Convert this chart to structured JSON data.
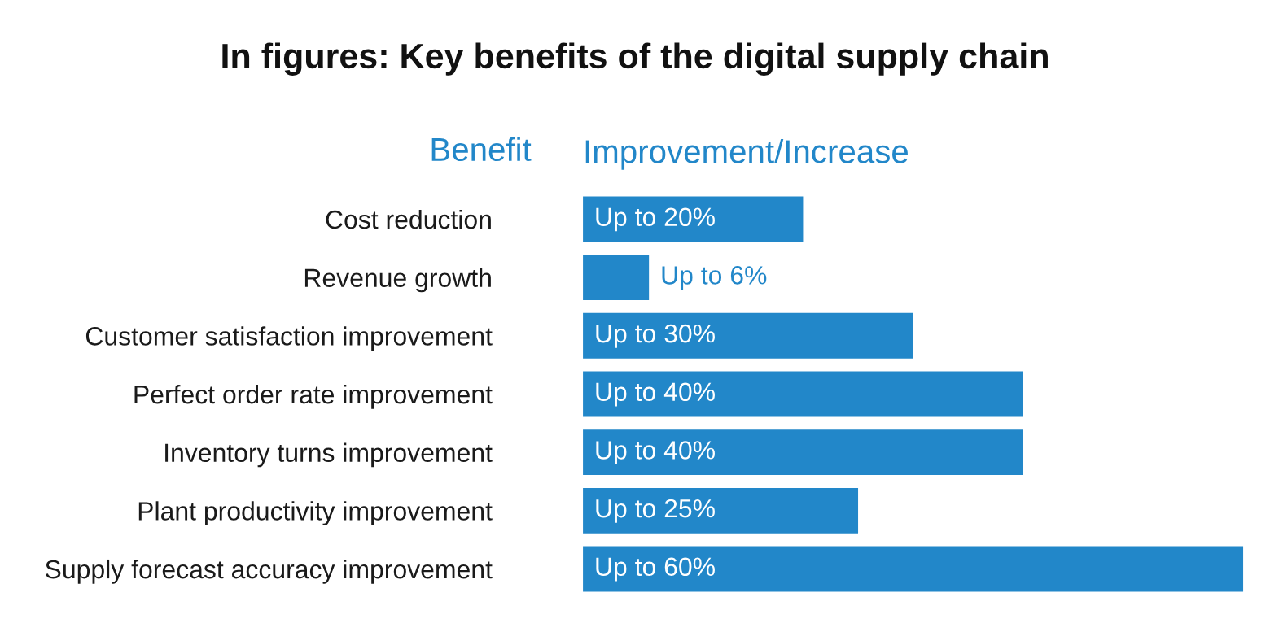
{
  "chart_data": {
    "type": "bar",
    "orientation": "horizontal",
    "title": "In figures: Key benefits of the digital supply chain",
    "xlabel": "Improvement/Increase",
    "ylabel": "Benefit",
    "categories": [
      "Cost reduction",
      "Revenue growth",
      "Customer satisfaction improvement",
      "Perfect order rate improvement",
      "Inventory turns improvement",
      "Plant productivity improvement",
      "Supply forecast accuracy improvement"
    ],
    "values": [
      20,
      6,
      30,
      40,
      40,
      25,
      60
    ],
    "value_labels": [
      "Up to 20%",
      "Up to 6%",
      "Up to 30%",
      "Up to 40%",
      "Up to 40%",
      "Up to 25%",
      "Up to 60%"
    ],
    "color": "#2287c9",
    "grid": false,
    "legend": false
  }
}
